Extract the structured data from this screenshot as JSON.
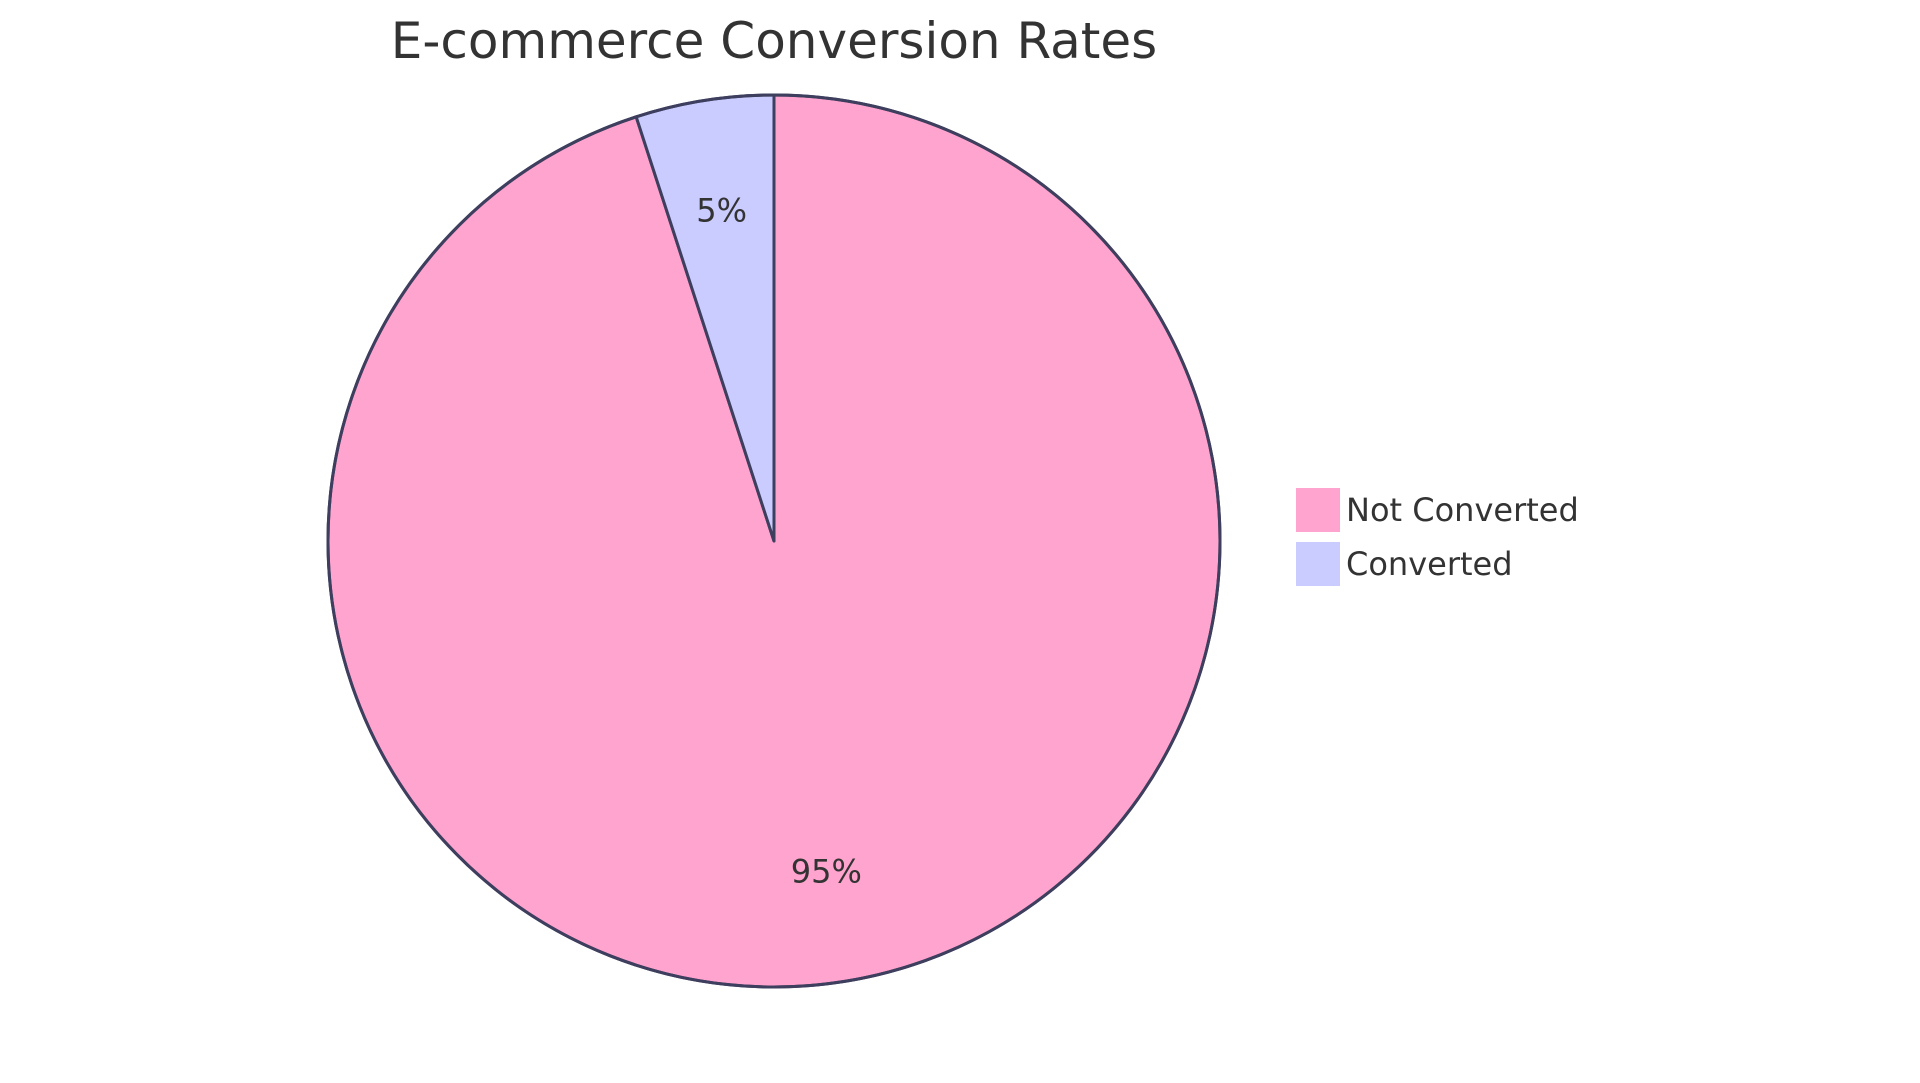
{
  "chart_data": {
    "type": "pie",
    "title": "E-commerce Conversion Rates",
    "slices": [
      {
        "label": "Not Converted",
        "value": 95,
        "display": "95%",
        "color": "#ffa3cf"
      },
      {
        "label": "Converted",
        "value": 5,
        "display": "5%",
        "color": "#cacbff"
      }
    ],
    "stroke_color": "#3e3f5e",
    "legend_position": "right",
    "start_angle": "12 o'clock",
    "direction": "clockwise"
  }
}
